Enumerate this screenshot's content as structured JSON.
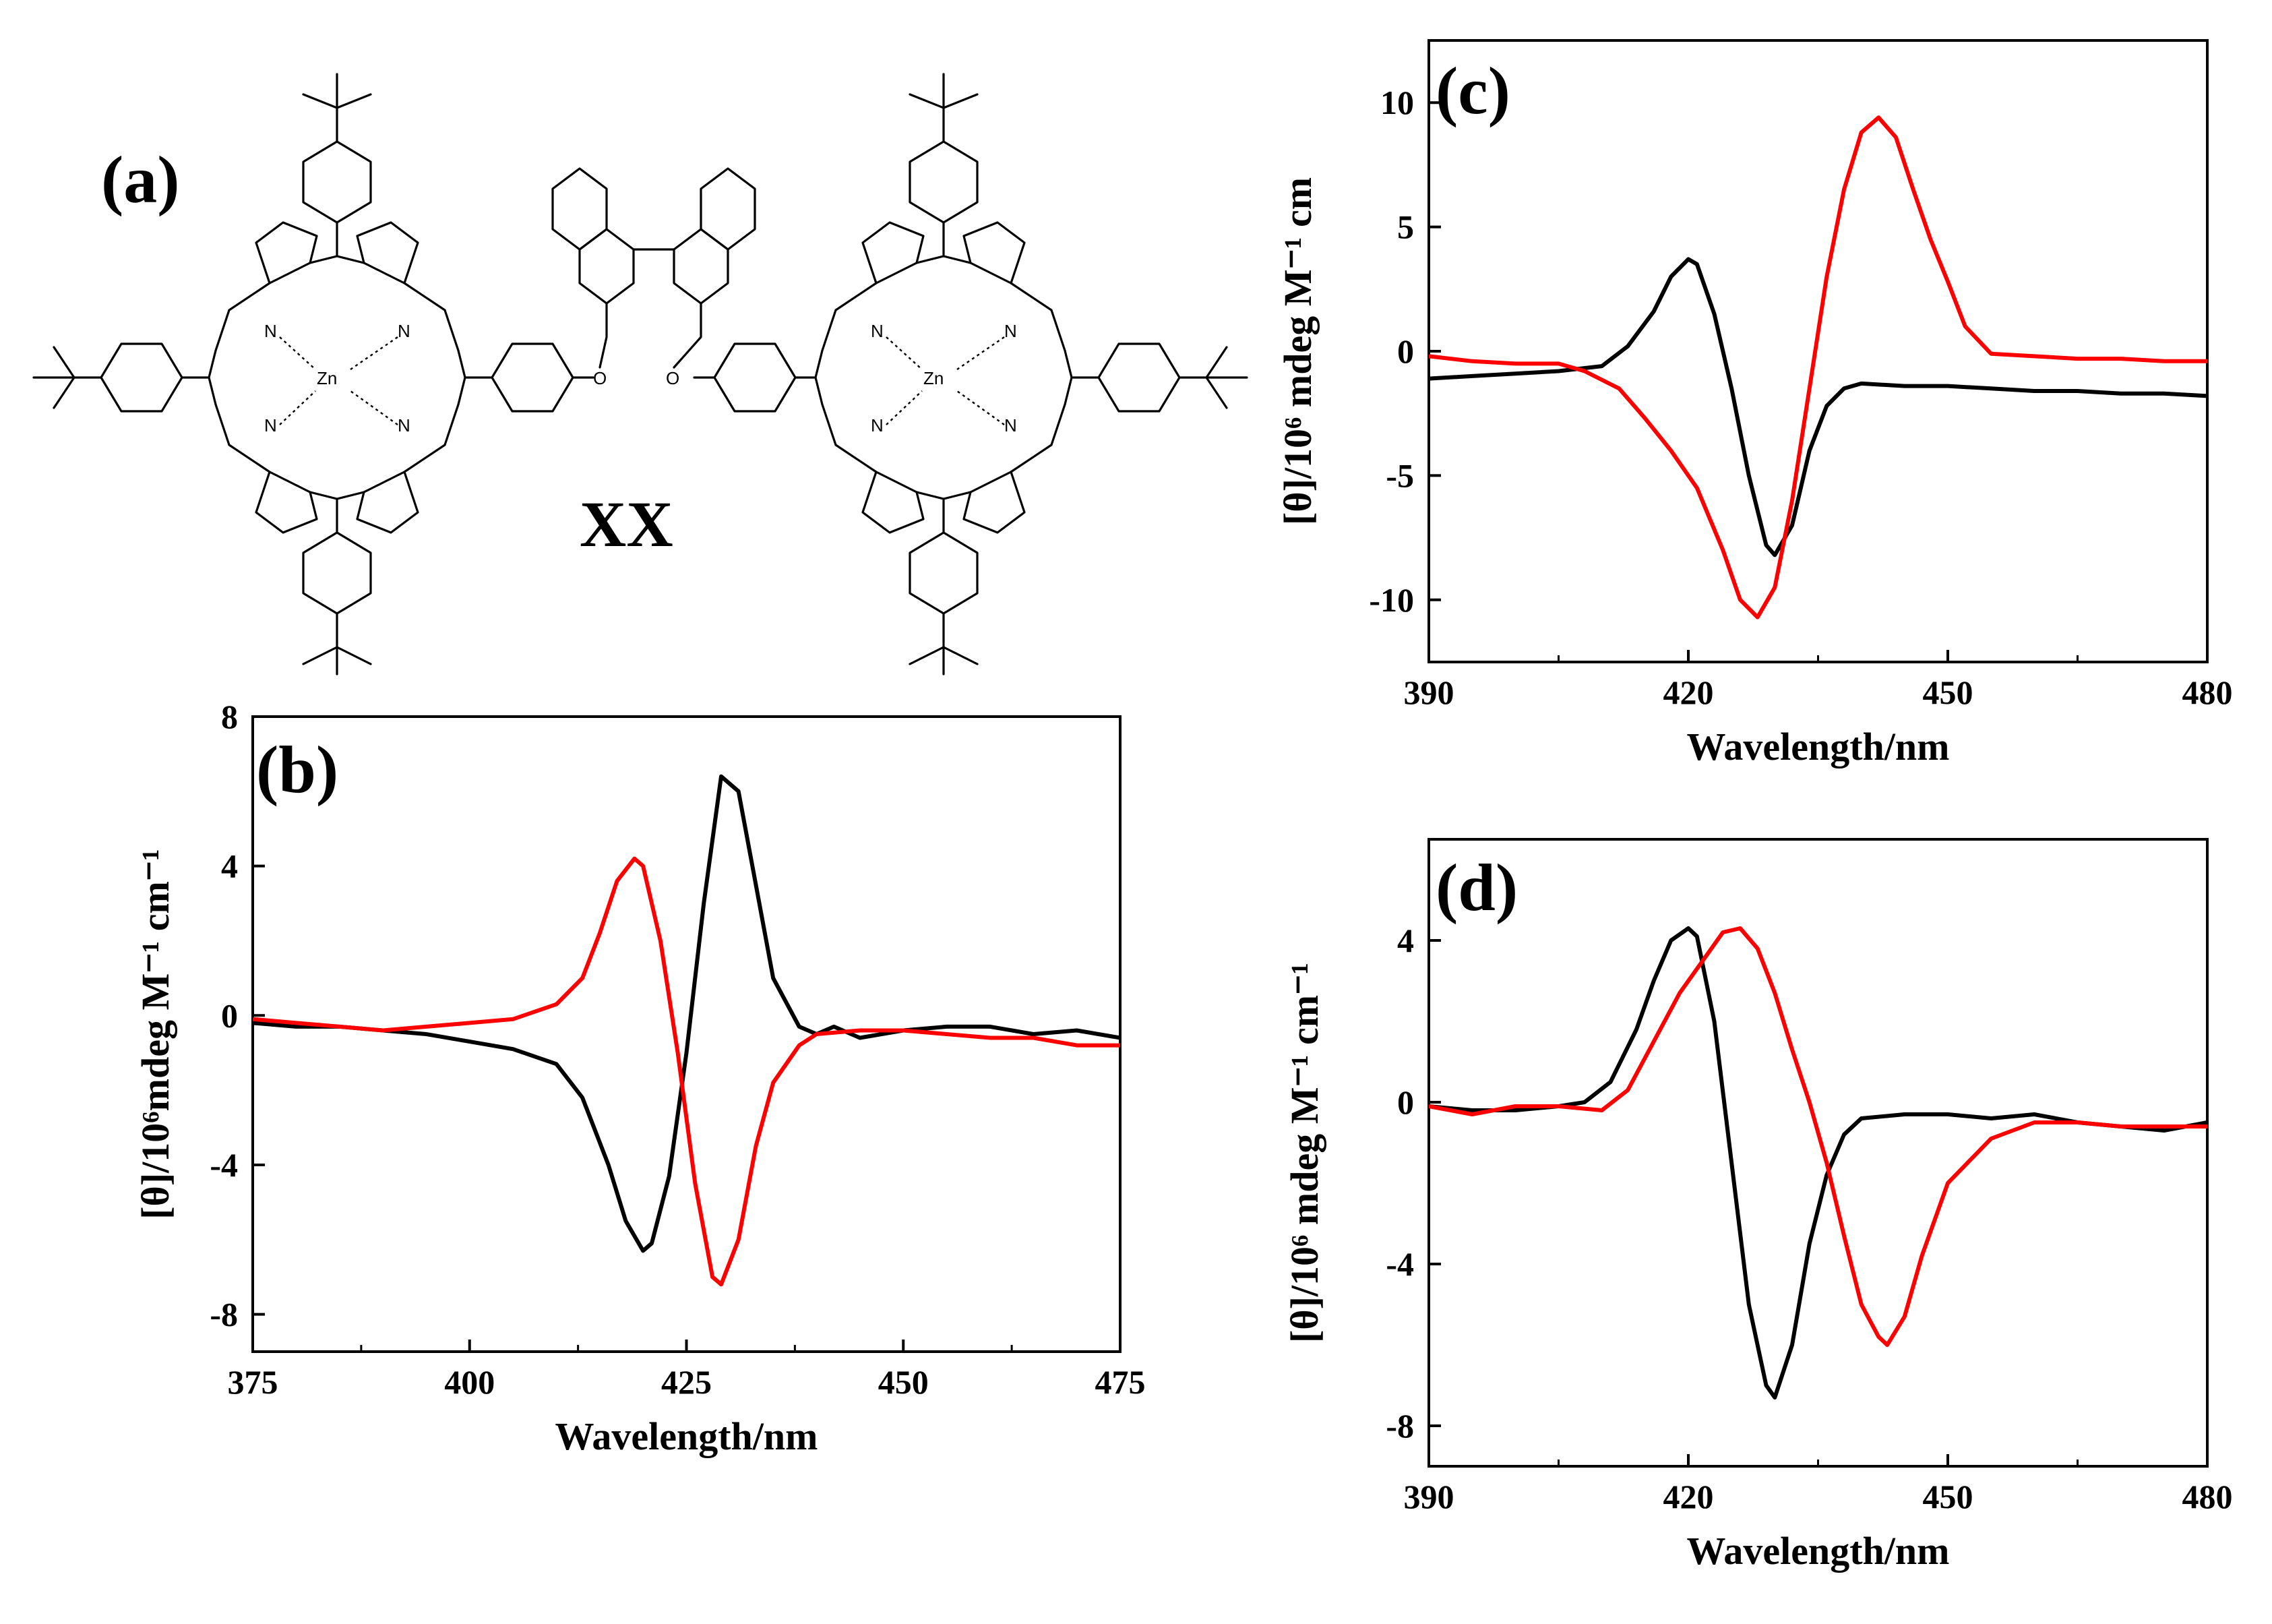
{
  "structure": {
    "panel_label": "(a)",
    "compound_label": "XX",
    "metal_label": "Zn",
    "nitrogen_label": "N",
    "oxygen_label": "O"
  },
  "colors": {
    "series_1": "#000000",
    "series_2": "#ff0000"
  },
  "chart_data": [
    {
      "panel": "(b)",
      "type": "line",
      "xlabel": "Wavelength/nm",
      "ylabel": "[θ]/10⁶mdeg M⁻¹ cm⁻¹",
      "xlim": [
        375,
        475
      ],
      "ylim": [
        -9,
        8
      ],
      "xticks": [
        375,
        400,
        425,
        450,
        475
      ],
      "yticks": [
        8,
        4,
        0,
        -4,
        -8
      ],
      "grid": false,
      "series": [
        {
          "color": "#000000",
          "x": [
            375,
            380,
            385,
            390,
            395,
            400,
            405,
            410,
            413,
            416,
            418,
            420,
            421,
            423,
            425,
            427,
            429,
            431,
            433,
            435,
            438,
            440,
            442,
            445,
            450,
            455,
            460,
            465,
            470,
            475
          ],
          "y": [
            -0.2,
            -0.3,
            -0.3,
            -0.4,
            -0.5,
            -0.7,
            -0.9,
            -1.3,
            -2.2,
            -4.0,
            -5.5,
            -6.3,
            -6.1,
            -4.3,
            -1.0,
            3.0,
            6.4,
            6.0,
            3.5,
            1.0,
            -0.3,
            -0.5,
            -0.3,
            -0.6,
            -0.4,
            -0.3,
            -0.3,
            -0.5,
            -0.4,
            -0.6
          ]
        },
        {
          "color": "#ff0000",
          "x": [
            375,
            380,
            385,
            390,
            395,
            400,
            405,
            410,
            413,
            415,
            417,
            419,
            420,
            422,
            424,
            426,
            428,
            429,
            431,
            433,
            435,
            438,
            440,
            445,
            450,
            455,
            460,
            465,
            470,
            475
          ],
          "y": [
            -0.1,
            -0.2,
            -0.3,
            -0.4,
            -0.3,
            -0.2,
            -0.1,
            0.3,
            1.0,
            2.2,
            3.6,
            4.2,
            4.0,
            2.0,
            -1.0,
            -4.5,
            -7.0,
            -7.2,
            -6.0,
            -3.5,
            -1.8,
            -0.8,
            -0.5,
            -0.4,
            -0.4,
            -0.5,
            -0.6,
            -0.6,
            -0.8,
            -0.8
          ]
        }
      ]
    },
    {
      "panel": "(c)",
      "type": "line",
      "xlabel": "Wavelength/nm",
      "ylabel": "[θ]/10⁶ mdeg M⁻¹ cm",
      "xlim": [
        390,
        480
      ],
      "ylim": [
        -12.5,
        12.5
      ],
      "xticks": [
        390,
        420,
        450,
        480
      ],
      "yticks": [
        10,
        5,
        0,
        -5,
        -10
      ],
      "grid": false,
      "series": [
        {
          "color": "#000000",
          "x": [
            390,
            395,
            400,
            405,
            410,
            413,
            416,
            418,
            420,
            421,
            423,
            425,
            427,
            429,
            430,
            432,
            434,
            436,
            438,
            440,
            445,
            450,
            455,
            460,
            465,
            470,
            475,
            480
          ],
          "y": [
            -1.1,
            -1.0,
            -0.9,
            -0.8,
            -0.6,
            0.2,
            1.6,
            3.0,
            3.7,
            3.5,
            1.5,
            -1.5,
            -5.0,
            -7.8,
            -8.2,
            -7.0,
            -4.0,
            -2.2,
            -1.5,
            -1.3,
            -1.4,
            -1.4,
            -1.5,
            -1.6,
            -1.6,
            -1.7,
            -1.7,
            -1.8
          ]
        },
        {
          "color": "#ff0000",
          "x": [
            390,
            395,
            400,
            405,
            408,
            412,
            415,
            418,
            421,
            424,
            426,
            428,
            430,
            432,
            434,
            436,
            438,
            440,
            442,
            444,
            446,
            448,
            450,
            452,
            455,
            460,
            465,
            470,
            475,
            480
          ],
          "y": [
            -0.2,
            -0.4,
            -0.5,
            -0.5,
            -0.8,
            -1.5,
            -2.7,
            -4.0,
            -5.5,
            -8.0,
            -10.0,
            -10.7,
            -9.5,
            -6.0,
            -1.5,
            3.0,
            6.5,
            8.8,
            9.4,
            8.6,
            6.5,
            4.5,
            2.8,
            1.0,
            -0.1,
            -0.2,
            -0.3,
            -0.3,
            -0.4,
            -0.4
          ]
        }
      ]
    },
    {
      "panel": "(d)",
      "type": "line",
      "xlabel": "Wavelength/nm",
      "ylabel": "[θ]/10⁶ mdeg M⁻¹ cm⁻¹",
      "xlim": [
        390,
        480
      ],
      "ylim": [
        -9,
        6.5
      ],
      "xticks": [
        390,
        420,
        450,
        480
      ],
      "yticks": [
        4,
        0,
        -4,
        -8
      ],
      "grid": false,
      "series": [
        {
          "color": "#000000",
          "x": [
            390,
            395,
            400,
            405,
            408,
            411,
            414,
            416,
            418,
            420,
            421,
            423,
            425,
            427,
            429,
            430,
            432,
            434,
            436,
            438,
            440,
            445,
            450,
            455,
            460,
            465,
            470,
            475,
            480
          ],
          "y": [
            -0.1,
            -0.2,
            -0.2,
            -0.1,
            0.0,
            0.5,
            1.8,
            3.0,
            4.0,
            4.3,
            4.1,
            2.0,
            -1.5,
            -5.0,
            -7.0,
            -7.3,
            -6.0,
            -3.5,
            -1.8,
            -0.8,
            -0.4,
            -0.3,
            -0.3,
            -0.4,
            -0.3,
            -0.5,
            -0.6,
            -0.7,
            -0.5
          ]
        },
        {
          "color": "#ff0000",
          "x": [
            390,
            395,
            400,
            405,
            410,
            413,
            416,
            419,
            422,
            424,
            426,
            428,
            430,
            432,
            434,
            436,
            438,
            440,
            442,
            443,
            445,
            447,
            450,
            455,
            460,
            465,
            470,
            475,
            480
          ],
          "y": [
            -0.1,
            -0.3,
            -0.1,
            -0.1,
            -0.2,
            0.3,
            1.5,
            2.7,
            3.6,
            4.2,
            4.3,
            3.8,
            2.7,
            1.3,
            0.0,
            -1.5,
            -3.3,
            -5.0,
            -5.8,
            -6.0,
            -5.3,
            -3.8,
            -2.0,
            -0.9,
            -0.5,
            -0.5,
            -0.6,
            -0.6,
            -0.6
          ]
        }
      ]
    }
  ]
}
